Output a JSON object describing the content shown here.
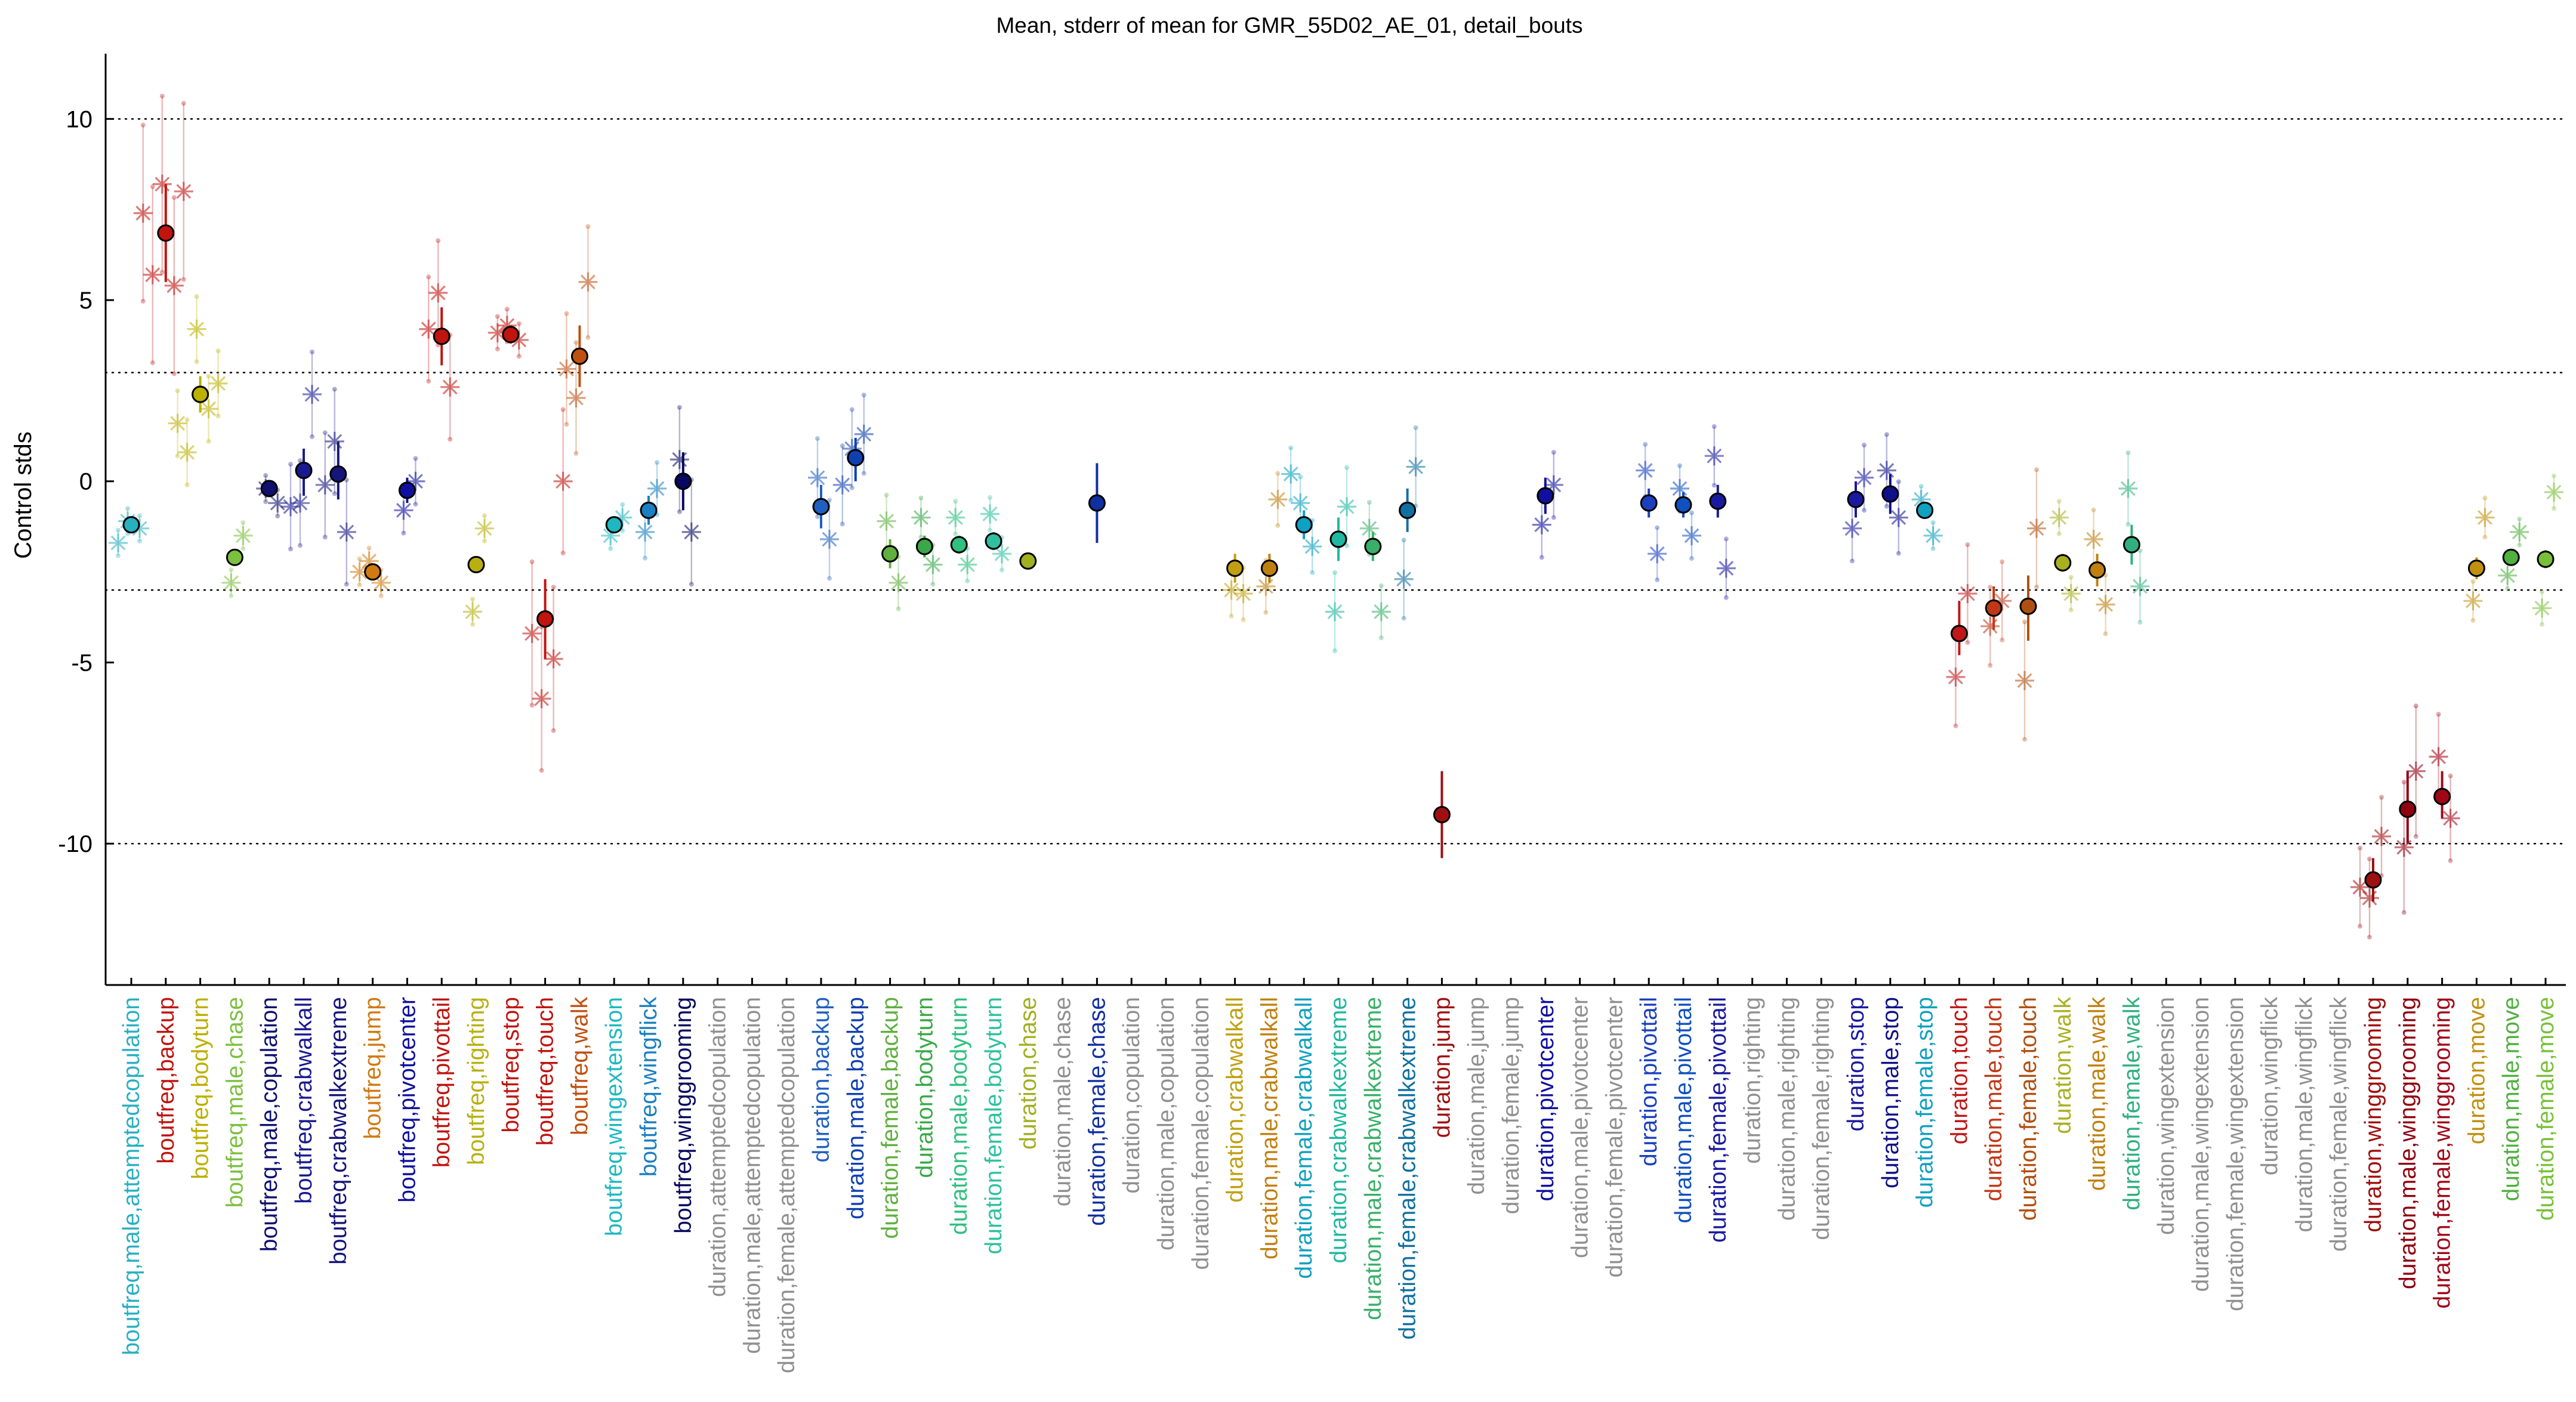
{
  "chart_data": {
    "type": "scatter",
    "title": "Mean, stderr of mean for GMR_55D02_AE_01, detail_bouts",
    "xlabel": "",
    "ylabel": "Control stds",
    "ylim": [
      -13.9,
      11.8
    ],
    "yticks": [
      -10,
      -5,
      0,
      5,
      10
    ],
    "reference_lines": [
      10,
      3,
      -3,
      -10
    ],
    "grid": false,
    "legend": "none",
    "categories": [
      {
        "label": "boutfreq,male,attemptedcopulation",
        "color": "#29b0c0",
        "mean": -1.2,
        "lo": -1.3,
        "hi": -1.1,
        "stars": [
          -1.1,
          -1.3,
          -1.7
        ]
      },
      {
        "label": "boutfreq,backup",
        "color": "#c0140f",
        "mean": 6.85,
        "lo": 5.5,
        "hi": 8.2,
        "stars": [
          8.2,
          5.4,
          5.7,
          8.0,
          7.4
        ]
      },
      {
        "label": "boutfreq,bodyturn",
        "color": "#bcb000",
        "mean": 2.4,
        "lo": 1.9,
        "hi": 2.9,
        "stars": [
          4.2,
          2.0,
          0.8,
          2.7,
          1.6
        ]
      },
      {
        "label": "boutfreq,male,chase",
        "color": "#7cc040",
        "mean": -2.1,
        "lo": -2.3,
        "hi": -1.9,
        "stars": [
          -2.8,
          -1.5
        ]
      },
      {
        "label": "boutfreq,male,copulation",
        "color": "#101070",
        "mean": -0.2,
        "lo": -0.4,
        "hi": 0.0,
        "stars": [
          -0.2,
          -0.6
        ]
      },
      {
        "label": "boutfreq,crabwalkall",
        "color": "#1a1a90",
        "mean": 0.3,
        "lo": -0.4,
        "hi": 0.9,
        "stars": [
          -0.6,
          2.4,
          -0.7
        ]
      },
      {
        "label": "boutfreq,crabwalkextreme",
        "color": "#15157a",
        "mean": 0.2,
        "lo": -0.5,
        "hi": 1.1,
        "stars": [
          1.1,
          -1.4,
          -0.1
        ]
      },
      {
        "label": "boutfreq,jump",
        "color": "#d07a12",
        "mean": -2.5,
        "lo": -2.7,
        "hi": -2.3,
        "stars": [
          -2.2,
          -2.8,
          -2.5
        ]
      },
      {
        "label": "boutfreq,pivotcenter",
        "color": "#1010a0",
        "mean": -0.25,
        "lo": -0.6,
        "hi": 0.1,
        "stars": [
          -0.8,
          0.0
        ]
      },
      {
        "label": "boutfreq,pivottail",
        "color": "#c0140f",
        "mean": 4.0,
        "lo": 3.2,
        "hi": 4.8,
        "stars": [
          5.2,
          2.6,
          4.2
        ]
      },
      {
        "label": "boutfreq,righting",
        "color": "#b8b010",
        "mean": -2.3,
        "lo": -2.4,
        "hi": -2.2,
        "stars": [
          -3.6,
          -1.3
        ]
      },
      {
        "label": "boutfreq,stop",
        "color": "#c0140f",
        "mean": 4.05,
        "lo": 3.8,
        "hi": 4.3,
        "stars": [
          4.3,
          3.9,
          4.1
        ]
      },
      {
        "label": "boutfreq,touch",
        "color": "#c0140f",
        "mean": -3.8,
        "lo": -4.9,
        "hi": -2.7,
        "stars": [
          -6.0,
          -4.9,
          -4.2,
          0.0
        ]
      },
      {
        "label": "boutfreq,walk",
        "color": "#c05010",
        "mean": 3.45,
        "lo": 2.6,
        "hi": 4.3,
        "stars": [
          2.3,
          5.5,
          3.1
        ]
      },
      {
        "label": "boutfreq,wingextension",
        "color": "#20b8c0",
        "mean": -1.2,
        "lo": -1.4,
        "hi": -1.0,
        "stars": [
          -1.5,
          -1.0
        ]
      },
      {
        "label": "boutfreq,wingflick",
        "color": "#1a80c0",
        "mean": -0.8,
        "lo": -1.2,
        "hi": -0.4,
        "stars": [
          -1.4,
          -0.2
        ]
      },
      {
        "label": "boutfreq,winggrooming",
        "color": "#080860",
        "mean": 0.0,
        "lo": -0.8,
        "hi": 0.8,
        "stars": [
          0.6,
          -1.4
        ]
      },
      {
        "label": "duration,attemptedcopulation",
        "color": "#909090",
        "mean": null,
        "lo": null,
        "hi": null,
        "stars": []
      },
      {
        "label": "duration,male,attemptedcopulation",
        "color": "#909090",
        "mean": null,
        "lo": null,
        "hi": null,
        "stars": []
      },
      {
        "label": "duration,female,attemptedcopulation",
        "color": "#909090",
        "mean": null,
        "lo": null,
        "hi": null,
        "stars": []
      },
      {
        "label": "duration,backup",
        "color": "#2060c0",
        "mean": -0.7,
        "lo": -1.3,
        "hi": -0.1,
        "stars": [
          0.1,
          -1.6
        ]
      },
      {
        "label": "duration,male,backup",
        "color": "#1040b0",
        "mean": 0.65,
        "lo": 0.0,
        "hi": 1.2,
        "stars": [
          0.9,
          1.3,
          -0.1
        ]
      },
      {
        "label": "duration,female,backup",
        "color": "#60b040",
        "mean": -2.0,
        "lo": -2.4,
        "hi": -1.6,
        "stars": [
          -1.1,
          -2.8
        ]
      },
      {
        "label": "duration,bodyturn",
        "color": "#3aa848",
        "mean": -1.8,
        "lo": -2.1,
        "hi": -1.5,
        "stars": [
          -1.0,
          -2.3
        ]
      },
      {
        "label": "duration,male,bodyturn",
        "color": "#30c080",
        "mean": -1.75,
        "lo": -2.0,
        "hi": -1.5,
        "stars": [
          -1.0,
          -2.3
        ]
      },
      {
        "label": "duration,female,bodyturn",
        "color": "#30c0a0",
        "mean": -1.65,
        "lo": -1.9,
        "hi": -1.4,
        "stars": [
          -0.9,
          -2.0
        ]
      },
      {
        "label": "duration,chase",
        "color": "#a0b020",
        "mean": -2.2,
        "lo": -2.3,
        "hi": -2.1,
        "stars": []
      },
      {
        "label": "duration,male,chase",
        "color": "#909090",
        "mean": null,
        "lo": null,
        "hi": null,
        "stars": []
      },
      {
        "label": "duration,female,chase",
        "color": "#1030a0",
        "mean": -0.6,
        "lo": -1.7,
        "hi": 0.5,
        "stars": []
      },
      {
        "label": "duration,copulation",
        "color": "#909090",
        "mean": null,
        "lo": null,
        "hi": null,
        "stars": []
      },
      {
        "label": "duration,male,copulation",
        "color": "#909090",
        "mean": null,
        "lo": null,
        "hi": null,
        "stars": []
      },
      {
        "label": "duration,female,copulation",
        "color": "#909090",
        "mean": null,
        "lo": null,
        "hi": null,
        "stars": []
      },
      {
        "label": "duration,crabwalkall",
        "color": "#c0a010",
        "mean": -2.4,
        "lo": -2.8,
        "hi": -2.0,
        "stars": [
          -3.0,
          -3.1
        ]
      },
      {
        "label": "duration,male,crabwalkall",
        "color": "#c08010",
        "mean": -2.4,
        "lo": -2.8,
        "hi": -2.0,
        "stars": [
          -2.9,
          -0.5
        ]
      },
      {
        "label": "duration,female,crabwalkall",
        "color": "#10a0c0",
        "mean": -1.2,
        "lo": -1.6,
        "hi": -0.8,
        "stars": [
          -0.6,
          -1.8,
          0.2
        ]
      },
      {
        "label": "duration,crabwalkextreme",
        "color": "#20b8a0",
        "mean": -1.6,
        "lo": -2.2,
        "hi": -1.0,
        "stars": [
          -3.6,
          -0.7
        ]
      },
      {
        "label": "duration,male,crabwalkextreme",
        "color": "#38b068",
        "mean": -1.8,
        "lo": -2.2,
        "hi": -1.4,
        "stars": [
          -1.3,
          -3.6
        ]
      },
      {
        "label": "duration,female,crabwalkextreme",
        "color": "#1070a0",
        "mean": -0.8,
        "lo": -1.4,
        "hi": -0.2,
        "stars": [
          -2.7,
          0.4
        ]
      },
      {
        "label": "duration,jump",
        "color": "#a01010",
        "mean": -9.2,
        "lo": -10.4,
        "hi": -8.0,
        "stars": []
      },
      {
        "label": "duration,male,jump",
        "color": "#909090",
        "mean": null,
        "lo": null,
        "hi": null,
        "stars": []
      },
      {
        "label": "duration,female,jump",
        "color": "#909090",
        "mean": null,
        "lo": null,
        "hi": null,
        "stars": []
      },
      {
        "label": "duration,pivotcenter",
        "color": "#1010a0",
        "mean": -0.4,
        "lo": -0.9,
        "hi": 0.1,
        "stars": [
          -1.2,
          -0.1
        ]
      },
      {
        "label": "duration,male,pivotcenter",
        "color": "#909090",
        "mean": null,
        "lo": null,
        "hi": null,
        "stars": []
      },
      {
        "label": "duration,female,pivotcenter",
        "color": "#909090",
        "mean": null,
        "lo": null,
        "hi": null,
        "stars": []
      },
      {
        "label": "duration,pivottail",
        "color": "#1a40c0",
        "mean": -0.6,
        "lo": -1.0,
        "hi": -0.2,
        "stars": [
          0.3,
          -2.0
        ]
      },
      {
        "label": "duration,male,pivottail",
        "color": "#1050c0",
        "mean": -0.65,
        "lo": -1.0,
        "hi": -0.3,
        "stars": [
          -0.2,
          -1.5
        ]
      },
      {
        "label": "duration,female,pivottail",
        "color": "#1a1aa0",
        "mean": -0.55,
        "lo": -1.0,
        "hi": -0.1,
        "stars": [
          0.7,
          -2.4
        ]
      },
      {
        "label": "duration,righting",
        "color": "#909090",
        "mean": null,
        "lo": null,
        "hi": null,
        "stars": []
      },
      {
        "label": "duration,male,righting",
        "color": "#909090",
        "mean": null,
        "lo": null,
        "hi": null,
        "stars": []
      },
      {
        "label": "duration,female,righting",
        "color": "#909090",
        "mean": null,
        "lo": null,
        "hi": null,
        "stars": []
      },
      {
        "label": "duration,stop",
        "color": "#1a1aa0",
        "mean": -0.5,
        "lo": -1.0,
        "hi": 0.0,
        "stars": [
          -1.3,
          0.1
        ]
      },
      {
        "label": "duration,male,stop",
        "color": "#10108a",
        "mean": -0.35,
        "lo": -0.9,
        "hi": 0.2,
        "stars": [
          0.3,
          -1.0
        ]
      },
      {
        "label": "duration,female,stop",
        "color": "#10a0c0",
        "mean": -0.8,
        "lo": -1.0,
        "hi": -0.6,
        "stars": [
          -0.5,
          -1.5
        ]
      },
      {
        "label": "duration,touch",
        "color": "#c01818",
        "mean": -4.2,
        "lo": -4.8,
        "hi": -3.3,
        "stars": [
          -5.4,
          -3.1
        ]
      },
      {
        "label": "duration,male,touch",
        "color": "#c03818",
        "mean": -3.5,
        "lo": -4.1,
        "hi": -2.9,
        "stars": [
          -4.0,
          -3.3
        ]
      },
      {
        "label": "duration,female,touch",
        "color": "#b05010",
        "mean": -3.45,
        "lo": -4.4,
        "hi": -2.6,
        "stars": [
          -5.5,
          -1.3
        ]
      },
      {
        "label": "duration,walk",
        "color": "#a8b020",
        "mean": -2.25,
        "lo": -2.5,
        "hi": -2.0,
        "stars": [
          -1.0,
          -3.1
        ]
      },
      {
        "label": "duration,male,walk",
        "color": "#c08010",
        "mean": -2.45,
        "lo": -2.9,
        "hi": -2.0,
        "stars": [
          -1.6,
          -3.4
        ]
      },
      {
        "label": "duration,female,walk",
        "color": "#30b080",
        "mean": -1.75,
        "lo": -2.3,
        "hi": -1.2,
        "stars": [
          -0.2,
          -2.9
        ]
      },
      {
        "label": "duration,wingextension",
        "color": "#909090",
        "mean": null,
        "lo": null,
        "hi": null,
        "stars": []
      },
      {
        "label": "duration,male,wingextension",
        "color": "#909090",
        "mean": null,
        "lo": null,
        "hi": null,
        "stars": []
      },
      {
        "label": "duration,female,wingextension",
        "color": "#909090",
        "mean": null,
        "lo": null,
        "hi": null,
        "stars": []
      },
      {
        "label": "duration,wingflick",
        "color": "#909090",
        "mean": null,
        "lo": null,
        "hi": null,
        "stars": []
      },
      {
        "label": "duration,male,wingflick",
        "color": "#909090",
        "mean": null,
        "lo": null,
        "hi": null,
        "stars": []
      },
      {
        "label": "duration,female,wingflick",
        "color": "#909090",
        "mean": null,
        "lo": null,
        "hi": null,
        "stars": []
      },
      {
        "label": "duration,winggrooming",
        "color": "#a01010",
        "mean": -11.0,
        "lo": -11.6,
        "hi": -10.4,
        "stars": [
          -11.5,
          -9.8,
          -11.2
        ]
      },
      {
        "label": "duration,male,winggrooming",
        "color": "#900010",
        "mean": -9.05,
        "lo": -10.0,
        "hi": -8.0,
        "stars": [
          -10.1,
          -8.0
        ]
      },
      {
        "label": "duration,female,winggrooming",
        "color": "#a00818",
        "mean": -8.7,
        "lo": -9.3,
        "hi": -8.0,
        "stars": [
          -7.6,
          -9.3
        ]
      },
      {
        "label": "duration,move",
        "color": "#c09010",
        "mean": -2.4,
        "lo": -2.7,
        "hi": -2.1,
        "stars": [
          -3.3,
          -1.0
        ]
      },
      {
        "label": "duration,male,move",
        "color": "#50b040",
        "mean": -2.1,
        "lo": -2.3,
        "hi": -1.9,
        "stars": [
          -2.6,
          -1.4
        ]
      },
      {
        "label": "duration,female,move",
        "color": "#78c038",
        "mean": -2.15,
        "lo": -2.4,
        "hi": -1.9,
        "stars": [
          -3.5,
          -0.3
        ]
      }
    ]
  }
}
